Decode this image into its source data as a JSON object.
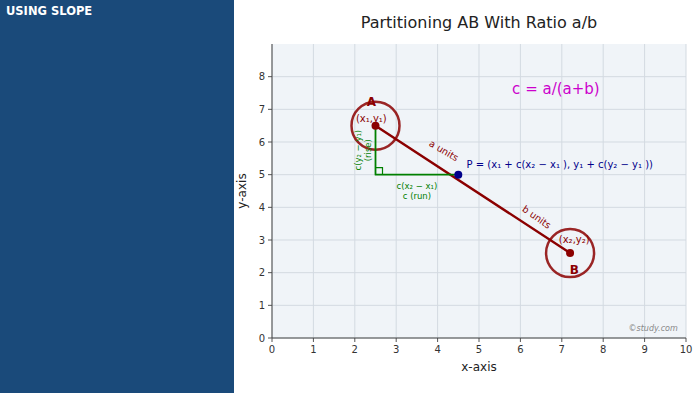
{
  "chart_data": {
    "type": "line",
    "title": "Partitioning AB With Ratio a/b",
    "x_label": "x-axis",
    "y_label": "y-axis",
    "xlim": [
      0,
      10
    ],
    "ylim": [
      0,
      9
    ],
    "xticks": [
      0,
      1,
      2,
      3,
      4,
      5,
      6,
      7,
      8,
      9,
      10
    ],
    "yticks": [
      0,
      1,
      2,
      3,
      4,
      5,
      6,
      7,
      8
    ],
    "grid": true,
    "series": [
      {
        "type": "line",
        "color": "#8B0000",
        "x": [
          2.5,
          7.2
        ],
        "values": [
          6.5,
          2.6
        ]
      },
      {
        "type": "line",
        "color": "#008000",
        "x": [
          2.5,
          2.5,
          4.5
        ],
        "values": [
          6.5,
          5.0,
          5.0
        ]
      },
      {
        "type": "scatter",
        "color": "#8B0000",
        "x": [
          2.5,
          7.2
        ],
        "values": [
          6.5,
          2.6
        ]
      },
      {
        "type": "scatter",
        "color": "#00008B",
        "x": [
          4.5
        ],
        "values": [
          5.0
        ]
      }
    ],
    "annotations": [
      {
        "text": "A",
        "color": "#8B0000"
      },
      {
        "text": "(x₁,y₁)",
        "color": "#8B0000"
      },
      {
        "text": "(x₂,y₂)",
        "color": "#8B0000"
      },
      {
        "text": "B",
        "color": "#8B0000"
      },
      {
        "text": "P = (x₁ + c(x₂ − x₁ ), y₁ + c(y₂ − y₁ ))",
        "color": "#00008B"
      },
      {
        "text": "c(y₂ − y₁)\n(rise)",
        "color": "#008000"
      },
      {
        "text": "c(x₂ − x₁)\nc (run)",
        "color": "#008000"
      },
      {
        "text": "a units",
        "color": "#8B0000"
      },
      {
        "text": "b units",
        "color": "#8B0000"
      },
      {
        "text": "c = a/(a+b)",
        "color": "#cc00cc"
      },
      {
        "text": "USING SLOPE",
        "color": "#ffffff"
      },
      {
        "text": "©study.com",
        "color": "#888888"
      }
    ]
  }
}
